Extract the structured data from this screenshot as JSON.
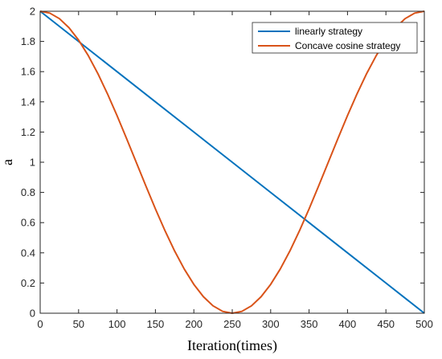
{
  "chart_data": {
    "type": "line",
    "xlabel": "Iteration(times)",
    "ylabel": "a",
    "xlim": [
      0,
      500
    ],
    "ylim": [
      0,
      2
    ],
    "xticks": [
      0,
      50,
      100,
      150,
      200,
      250,
      300,
      350,
      400,
      450,
      500
    ],
    "yticks": [
      0,
      0.2,
      0.4,
      0.6,
      0.8,
      1,
      1.2,
      1.4,
      1.6,
      1.8,
      2
    ],
    "grid": false,
    "legend_position": "top-right",
    "series": [
      {
        "name": "linearly strategy",
        "color": "#0072BD",
        "x": [
          0,
          50,
          100,
          150,
          200,
          250,
          300,
          350,
          400,
          450,
          500
        ],
        "y": [
          2,
          1.8,
          1.6,
          1.4,
          1.2,
          1,
          0.8,
          0.6,
          0.4,
          0.2,
          0
        ]
      },
      {
        "name": "Concave cosine strategy",
        "color": "#D95319",
        "x": [
          0,
          12.5,
          25,
          37.5,
          50,
          62.5,
          75,
          87.5,
          100,
          112.5,
          125,
          137.5,
          150,
          162.5,
          175,
          187.5,
          200,
          212.5,
          225,
          237.5,
          250,
          262.5,
          275,
          287.5,
          300,
          312.5,
          325,
          337.5,
          350,
          362.5,
          375,
          387.5,
          400,
          412.5,
          425,
          437.5,
          450,
          462.5,
          475,
          487.5,
          500
        ],
        "y": [
          2,
          1.9877,
          1.9511,
          1.891,
          1.809,
          1.7071,
          1.5878,
          1.454,
          1.309,
          1.1564,
          1.0,
          0.8436,
          0.691,
          0.546,
          0.4122,
          0.2929,
          0.191,
          0.109,
          0.0489,
          0.0123,
          0,
          0.0123,
          0.0489,
          0.109,
          0.191,
          0.2929,
          0.4122,
          0.546,
          0.691,
          0.8436,
          1.0,
          1.1564,
          1.309,
          1.454,
          1.5878,
          1.7071,
          1.809,
          1.891,
          1.9511,
          1.9877,
          2
        ]
      }
    ]
  }
}
